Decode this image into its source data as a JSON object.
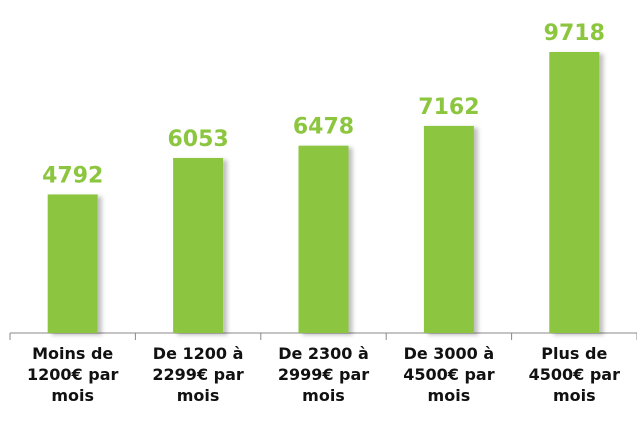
{
  "chart_data": {
    "type": "bar",
    "categories": [
      "Moins de 1200€ par mois",
      "De 1200 à 2299€ par mois",
      "De 2300 à 2999€ par mois",
      "De 3000 à 4500€ par mois",
      "Plus de 4500€ par mois"
    ],
    "values": [
      4792,
      6053,
      6478,
      7162,
      9718
    ],
    "color": "#8cc63f"
  }
}
